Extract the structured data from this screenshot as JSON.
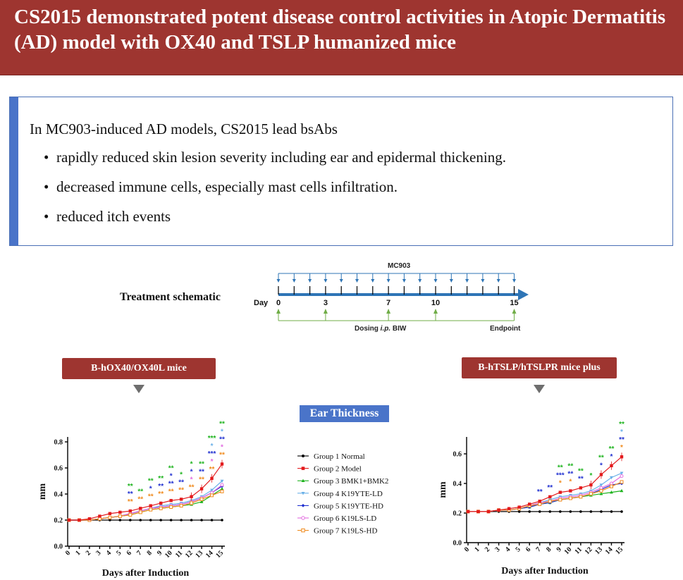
{
  "header": {
    "title": "CS2015 demonstrated potent disease control activities in Atopic Dermatitis (AD) model with OX40 and TSLP humanized mice"
  },
  "summary": {
    "intro": "In MC903-induced AD models, CS2015 lead bsAbs",
    "bullets": [
      "rapidly reduced skin lesion severity including ear and epidermal thickening.",
      "decreased immune cells, especially mast cells infiltration.",
      "reduced itch events"
    ]
  },
  "schematic": {
    "label": "Treatment schematic",
    "mc903": "MC903",
    "day_label": "Day",
    "day_ticks": [
      "0",
      "3",
      "7",
      "10",
      "15"
    ],
    "dosing_pre": "Dosing ",
    "dosing_ip": "i.p.",
    "dosing_post": " BIW",
    "endpoint": "Endpoint"
  },
  "tags": {
    "left": "B-hOX40/OX40L mice",
    "right": "B-hTSLP/hTSLPR mice plus",
    "center": "Ear Thickness"
  },
  "colors": {
    "header_bg": "#9e3530",
    "accent_blue": "#4a74c9",
    "schematic_blue": "#2e75b6",
    "schematic_green": "#70ad47",
    "series": [
      "#000000",
      "#e31a1c",
      "#1db31d",
      "#6ab0e8",
      "#1f2fd0",
      "#e26be0",
      "#f08a1c"
    ]
  },
  "chart_data": [
    {
      "type": "line",
      "xlabel": "Days after Induction",
      "ylabel": "mm",
      "xlim": [
        0,
        15
      ],
      "ylim": [
        0,
        0.8
      ],
      "y_ticks": [
        "0.0",
        "0.2",
        "0.4",
        "0.6",
        "0.8"
      ],
      "x": [
        0,
        1,
        2,
        3,
        4,
        5,
        6,
        7,
        8,
        9,
        10,
        11,
        12,
        13,
        14,
        15
      ],
      "series": [
        {
          "name": "Group 1 Normal",
          "values": [
            0.2,
            0.2,
            0.2,
            0.2,
            0.2,
            0.2,
            0.2,
            0.2,
            0.2,
            0.2,
            0.2,
            0.2,
            0.2,
            0.2,
            0.2,
            0.2
          ]
        },
        {
          "name": "Group 2 Model",
          "values": [
            0.2,
            0.2,
            0.21,
            0.23,
            0.25,
            0.26,
            0.27,
            0.29,
            0.31,
            0.33,
            0.35,
            0.36,
            0.38,
            0.44,
            0.52,
            0.63
          ]
        },
        {
          "name": "Group 3 BMK1+BMK2",
          "values": [
            0.2,
            0.2,
            0.2,
            0.21,
            0.22,
            0.23,
            0.24,
            0.26,
            0.28,
            0.29,
            0.3,
            0.31,
            0.32,
            0.34,
            0.39,
            0.44
          ]
        },
        {
          "name": "Group 4 K19YTE-LD",
          "values": [
            0.2,
            0.2,
            0.2,
            0.21,
            0.22,
            0.23,
            0.25,
            0.27,
            0.29,
            0.31,
            0.32,
            0.33,
            0.35,
            0.38,
            0.43,
            0.5
          ]
        },
        {
          "name": "Group 5 K19YTE-HD",
          "values": [
            0.2,
            0.2,
            0.2,
            0.21,
            0.22,
            0.23,
            0.25,
            0.27,
            0.29,
            0.3,
            0.31,
            0.32,
            0.34,
            0.37,
            0.41,
            0.46
          ]
        },
        {
          "name": "Group 6 K19LS-LD",
          "values": [
            0.2,
            0.2,
            0.2,
            0.21,
            0.22,
            0.23,
            0.25,
            0.27,
            0.29,
            0.3,
            0.31,
            0.32,
            0.34,
            0.37,
            0.41,
            0.47
          ]
        },
        {
          "name": "Group 7 K19LS-HD",
          "values": [
            0.2,
            0.2,
            0.2,
            0.21,
            0.22,
            0.23,
            0.24,
            0.26,
            0.28,
            0.29,
            0.3,
            0.31,
            0.33,
            0.36,
            0.39,
            0.42
          ]
        }
      ],
      "annotations": [
        {
          "x": 6,
          "marks": [
            {
              "text": "**",
              "series": 2
            },
            {
              "text": "**",
              "series": 4
            },
            {
              "text": "**",
              "series": 6
            }
          ]
        },
        {
          "x": 7,
          "marks": [
            {
              "text": "**",
              "series": 2
            },
            {
              "text": "**",
              "series": 6
            }
          ]
        },
        {
          "x": 8,
          "marks": [
            {
              "text": "**",
              "series": 2
            },
            {
              "text": "*",
              "series": 4
            },
            {
              "text": "**",
              "series": 6
            }
          ]
        },
        {
          "x": 9,
          "marks": [
            {
              "text": "**",
              "series": 2
            },
            {
              "text": "**",
              "series": 4
            },
            {
              "text": "**",
              "series": 6
            }
          ]
        },
        {
          "x": 10,
          "marks": [
            {
              "text": "**",
              "series": 2
            },
            {
              "text": "*",
              "series": 4
            },
            {
              "text": "**",
              "series": 4
            },
            {
              "text": "**",
              "series": 6
            }
          ]
        },
        {
          "x": 11,
          "marks": [
            {
              "text": "*",
              "series": 2
            },
            {
              "text": "**",
              "series": 4
            },
            {
              "text": "**",
              "series": 6
            }
          ]
        },
        {
          "x": 12,
          "marks": [
            {
              "text": "*",
              "series": 2
            },
            {
              "text": "*",
              "series": 4
            },
            {
              "text": "*",
              "series": 5
            },
            {
              "text": "**",
              "series": 6
            }
          ]
        },
        {
          "x": 13,
          "marks": [
            {
              "text": "**",
              "series": 2
            },
            {
              "text": "**",
              "series": 4
            },
            {
              "text": "**",
              "series": 6
            }
          ]
        },
        {
          "x": 14,
          "marks": [
            {
              "text": "***",
              "series": 2
            },
            {
              "text": "*",
              "series": 3
            },
            {
              "text": "***",
              "series": 4
            },
            {
              "text": "*",
              "series": 5
            },
            {
              "text": "**",
              "series": 6
            }
          ]
        },
        {
          "x": 15,
          "marks": [
            {
              "text": "**",
              "series": 2
            },
            {
              "text": "*",
              "series": 3
            },
            {
              "text": "**",
              "series": 4
            },
            {
              "text": "*",
              "series": 5
            },
            {
              "text": "**",
              "series": 6
            }
          ]
        }
      ]
    },
    {
      "type": "line",
      "xlabel": "Days after Induction",
      "ylabel": "mm",
      "xlim": [
        0,
        15
      ],
      "ylim": [
        0,
        0.7
      ],
      "y_ticks": [
        "0.0",
        "0.2",
        "0.4",
        "0.6"
      ],
      "x": [
        0,
        1,
        2,
        3,
        4,
        5,
        6,
        7,
        8,
        9,
        10,
        11,
        12,
        13,
        14,
        15
      ],
      "series": [
        {
          "name": "Group 1 Normal",
          "values": [
            0.21,
            0.21,
            0.21,
            0.21,
            0.21,
            0.21,
            0.21,
            0.21,
            0.21,
            0.21,
            0.21,
            0.21,
            0.21,
            0.21,
            0.21,
            0.21
          ]
        },
        {
          "name": "Group 2 Model",
          "values": [
            0.21,
            0.21,
            0.21,
            0.22,
            0.23,
            0.24,
            0.26,
            0.28,
            0.31,
            0.34,
            0.35,
            0.37,
            0.39,
            0.46,
            0.52,
            0.58
          ]
        },
        {
          "name": "Group 3 BMK1+BMK2",
          "values": [
            0.21,
            0.21,
            0.21,
            0.22,
            0.22,
            0.23,
            0.24,
            0.26,
            0.27,
            0.29,
            0.3,
            0.31,
            0.32,
            0.33,
            0.34,
            0.35
          ]
        },
        {
          "name": "Group 4 K19YTE-LD",
          "values": [
            0.21,
            0.21,
            0.21,
            0.22,
            0.22,
            0.23,
            0.25,
            0.27,
            0.29,
            0.31,
            0.32,
            0.33,
            0.35,
            0.39,
            0.44,
            0.47
          ]
        },
        {
          "name": "Group 5 K19YTE-HD",
          "values": [
            0.21,
            0.21,
            0.21,
            0.22,
            0.22,
            0.23,
            0.24,
            0.26,
            0.27,
            0.29,
            0.3,
            0.31,
            0.33,
            0.36,
            0.39,
            0.4
          ]
        },
        {
          "name": "Group 6 K19LS-LD",
          "values": [
            0.21,
            0.21,
            0.21,
            0.22,
            0.22,
            0.23,
            0.25,
            0.27,
            0.28,
            0.3,
            0.31,
            0.32,
            0.34,
            0.37,
            0.4,
            0.45
          ]
        },
        {
          "name": "Group 7 K19LS-HD",
          "values": [
            0.21,
            0.21,
            0.21,
            0.22,
            0.22,
            0.23,
            0.25,
            0.26,
            0.28,
            0.29,
            0.3,
            0.31,
            0.33,
            0.35,
            0.38,
            0.41
          ]
        }
      ],
      "annotations": [
        {
          "x": 7,
          "marks": [
            {
              "text": "**",
              "series": 4
            }
          ]
        },
        {
          "x": 8,
          "marks": [
            {
              "text": "**",
              "series": 4
            }
          ]
        },
        {
          "x": 9,
          "marks": [
            {
              "text": "**",
              "series": 2
            },
            {
              "text": "***",
              "series": 4
            },
            {
              "text": "*",
              "series": 6
            }
          ]
        },
        {
          "x": 10,
          "marks": [
            {
              "text": "**",
              "series": 2
            },
            {
              "text": "**",
              "series": 4
            },
            {
              "text": "*",
              "series": 6
            }
          ]
        },
        {
          "x": 11,
          "marks": [
            {
              "text": "**",
              "series": 2
            },
            {
              "text": "**",
              "series": 4
            }
          ]
        },
        {
          "x": 12,
          "marks": [
            {
              "text": "*",
              "series": 2
            }
          ]
        },
        {
          "x": 13,
          "marks": [
            {
              "text": "**",
              "series": 2
            },
            {
              "text": "*",
              "series": 4
            }
          ]
        },
        {
          "x": 14,
          "marks": [
            {
              "text": "**",
              "series": 2
            },
            {
              "text": "*",
              "series": 4
            }
          ]
        },
        {
          "x": 15,
          "marks": [
            {
              "text": "**",
              "series": 2
            },
            {
              "text": "*",
              "series": 3
            },
            {
              "text": "**",
              "series": 4
            },
            {
              "text": "*",
              "series": 6
            }
          ]
        }
      ]
    }
  ]
}
